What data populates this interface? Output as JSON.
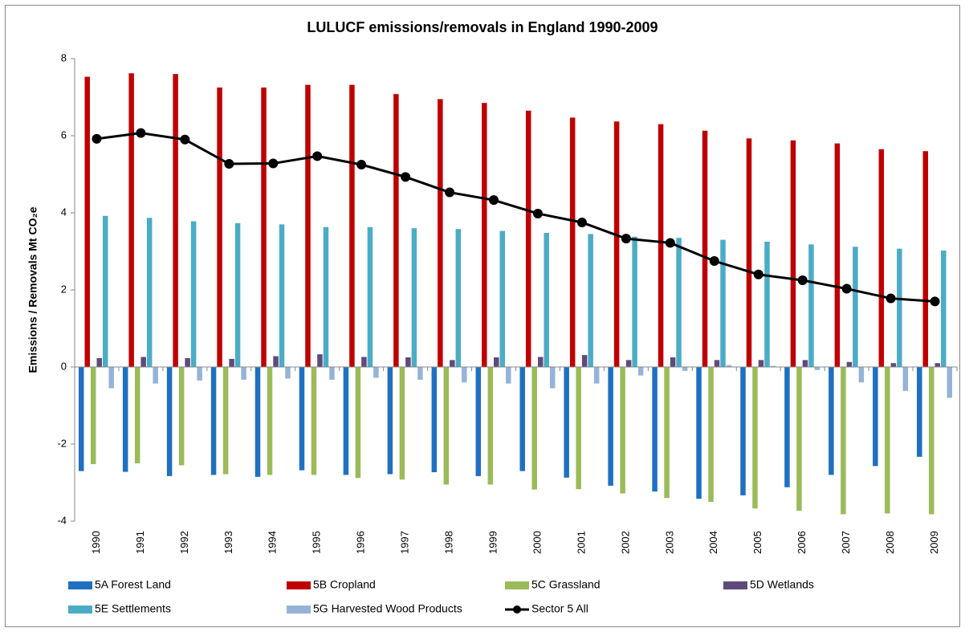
{
  "chart_data": {
    "type": "bar",
    "title": "LULUCF emissions/removals  in England 1990-2009",
    "y_label": "Emissions / Removals Mt CO₂e",
    "categories": [
      "1990",
      "1991",
      "1992",
      "1993",
      "1994",
      "1995",
      "1996",
      "1997",
      "1998",
      "1999",
      "2000",
      "2001",
      "2002",
      "2003",
      "2004",
      "2005",
      "2006",
      "2007",
      "2008",
      "2009"
    ],
    "series": [
      {
        "name": "5A Forest Land",
        "color": "#1f70c1",
        "values": [
          -2.7,
          -2.72,
          -2.83,
          -2.8,
          -2.85,
          -2.68,
          -2.8,
          -2.78,
          -2.73,
          -2.83,
          -2.7,
          -2.87,
          -3.08,
          -3.23,
          -3.42,
          -3.33,
          -3.12,
          -2.8,
          -2.57,
          -2.33
        ]
      },
      {
        "name": "5B Cropland",
        "color": "#c00000",
        "values": [
          7.53,
          7.62,
          7.6,
          7.25,
          7.25,
          7.32,
          7.32,
          7.08,
          6.95,
          6.85,
          6.65,
          6.47,
          6.37,
          6.3,
          6.13,
          5.93,
          5.88,
          5.8,
          5.65,
          5.6
        ]
      },
      {
        "name": "5C Grassland",
        "color": "#9bbb59",
        "values": [
          -2.52,
          -2.5,
          -2.55,
          -2.78,
          -2.8,
          -2.8,
          -2.88,
          -2.92,
          -3.05,
          -3.05,
          -3.18,
          -3.17,
          -3.28,
          -3.4,
          -3.5,
          -3.67,
          -3.73,
          -3.82,
          -3.8,
          -3.82
        ]
      },
      {
        "name": "5D Wetlands",
        "color": "#604a7b",
        "values": [
          0.23,
          0.26,
          0.23,
          0.21,
          0.28,
          0.33,
          0.26,
          0.25,
          0.18,
          0.25,
          0.26,
          0.31,
          0.18,
          0.25,
          0.18,
          0.18,
          0.18,
          0.13,
          0.1,
          0.1
        ]
      },
      {
        "name": "5E Settlements",
        "color": "#4bacc6",
        "values": [
          3.92,
          3.87,
          3.78,
          3.73,
          3.7,
          3.63,
          3.63,
          3.6,
          3.58,
          3.53,
          3.48,
          3.45,
          3.38,
          3.35,
          3.3,
          3.25,
          3.18,
          3.12,
          3.07,
          3.02
        ]
      },
      {
        "name": "5G Harvested Wood  Products",
        "color": "#95b3d7",
        "values": [
          -0.55,
          -0.43,
          -0.35,
          -0.33,
          -0.3,
          -0.33,
          -0.28,
          -0.33,
          -0.4,
          -0.43,
          -0.55,
          -0.43,
          -0.22,
          -0.1,
          0.05,
          0.03,
          -0.08,
          -0.4,
          -0.62,
          -0.8
        ]
      },
      {
        "name": "Sector 5 All",
        "color": "#000000",
        "type": "line",
        "values": [
          5.92,
          6.07,
          5.9,
          5.27,
          5.28,
          5.47,
          5.25,
          4.93,
          4.53,
          4.33,
          3.98,
          3.75,
          3.33,
          3.22,
          2.75,
          2.4,
          2.25,
          2.03,
          1.78,
          1.7
        ]
      }
    ],
    "ylim": [
      -4,
      8
    ],
    "yticks": [
      -4,
      -2,
      0,
      2,
      4,
      6,
      8
    ],
    "grid": false,
    "legend": "bottom"
  }
}
